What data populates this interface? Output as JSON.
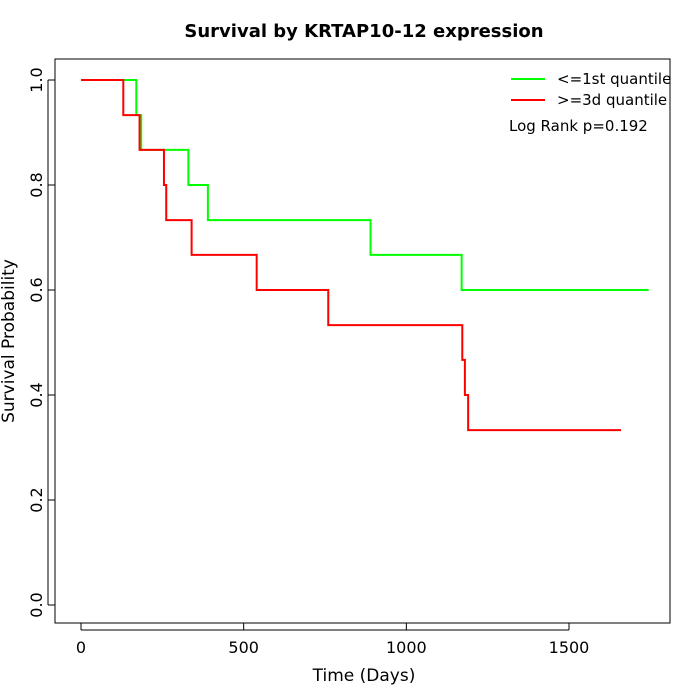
{
  "chart_data": {
    "type": "line",
    "title": "Survival by KRTAP10-12 expression",
    "xlabel": "Time (Days)",
    "ylabel": "Survival Probability",
    "xlim": [
      -50,
      1800
    ],
    "ylim": [
      0,
      1
    ],
    "xticks": [
      0,
      500,
      1000,
      1500
    ],
    "yticks": [
      0.0,
      0.2,
      0.4,
      0.6,
      0.8,
      1.0
    ],
    "xtick_labels": [
      "0",
      "500",
      "1000",
      "1500"
    ],
    "ytick_labels": [
      "0.0",
      "0.2",
      "0.4",
      "0.6",
      "0.8",
      "1.0"
    ],
    "grid": false,
    "legend_position": "top-right",
    "annotation": "Log Rank p=0.192",
    "series": [
      {
        "name": "<=1st quantile",
        "color": "#00ff00",
        "step": true,
        "x": [
          0,
          170,
          185,
          330,
          390,
          890,
          1170,
          1745
        ],
        "y": [
          1.0,
          0.933,
          0.867,
          0.8,
          0.733,
          0.667,
          0.6,
          0.6
        ]
      },
      {
        "name": ">=3d quantile",
        "color": "#ff0000",
        "step": true,
        "x": [
          0,
          130,
          180,
          255,
          262,
          340,
          540,
          760,
          1172,
          1180,
          1190,
          1660
        ],
        "y": [
          1.0,
          0.933,
          0.867,
          0.8,
          0.733,
          0.667,
          0.6,
          0.533,
          0.467,
          0.4,
          0.333,
          0.333
        ]
      }
    ]
  }
}
